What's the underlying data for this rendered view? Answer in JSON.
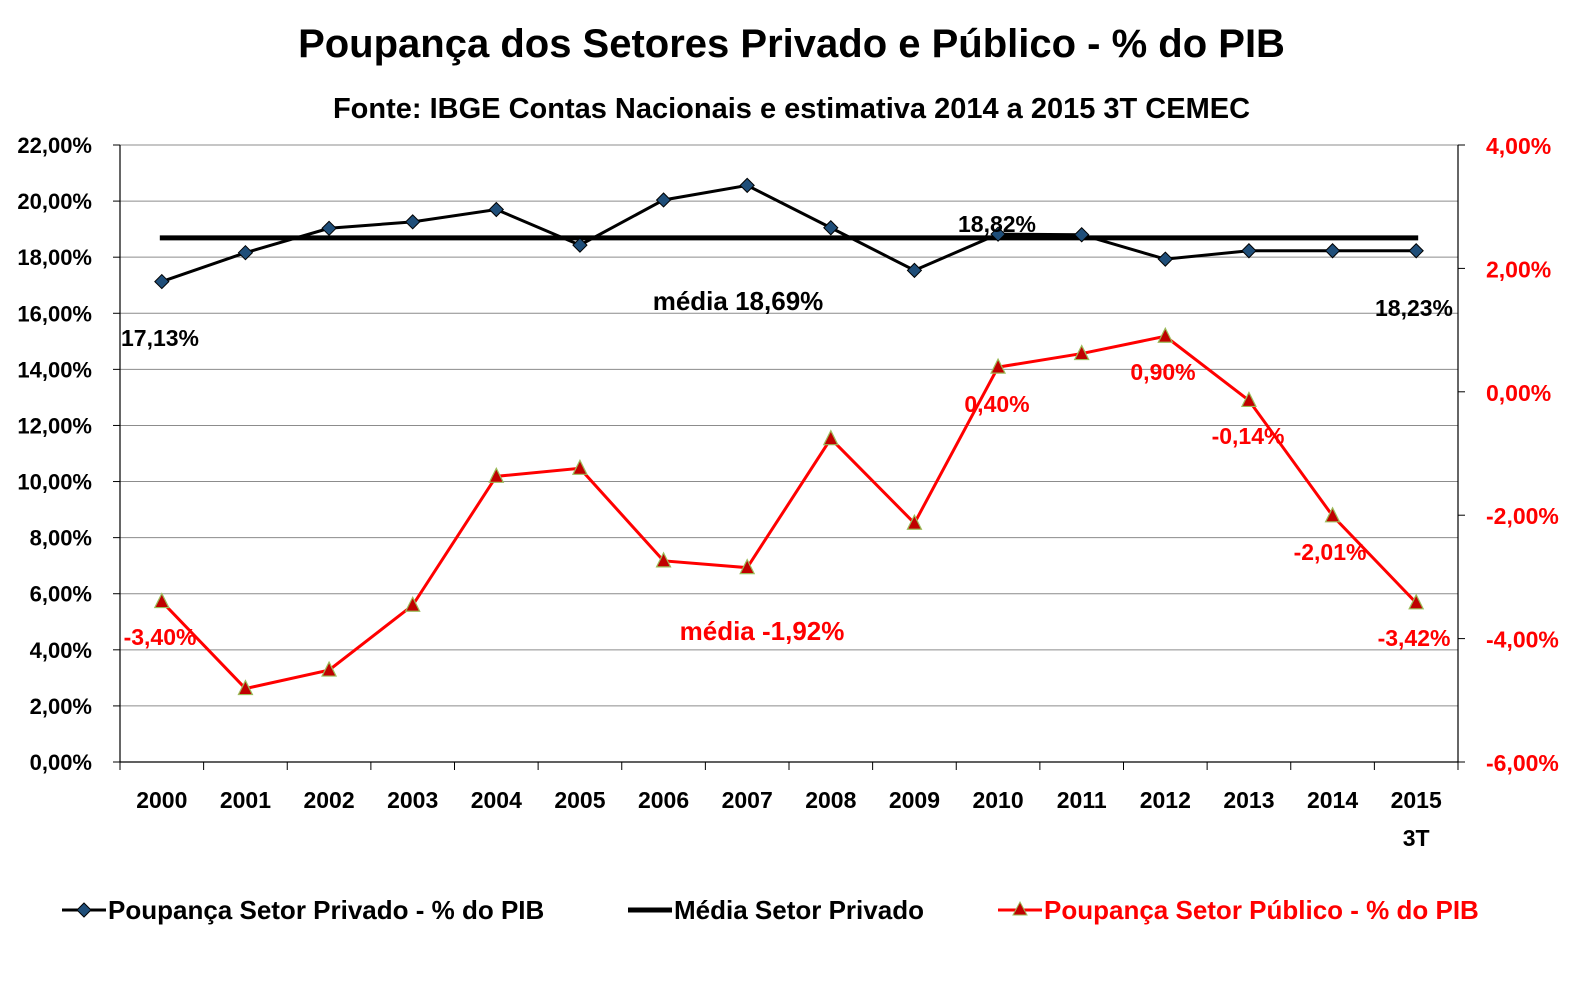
{
  "chart_data": {
    "type": "line",
    "title": "Poupança dos Setores Privado e Público - % do PIB",
    "subtitle": "Fonte: IBGE  Contas Nacionais e estimativa 2014 a 2015 3T CEMEC",
    "categories": [
      "2000",
      "2001",
      "2002",
      "2003",
      "2004",
      "2005",
      "2006",
      "2007",
      "2008",
      "2009",
      "2010",
      "2011",
      "2012",
      "2013",
      "2014",
      "2015\n3T"
    ],
    "y_left": {
      "range": [
        0,
        22
      ],
      "ticks": [
        "0,00%",
        "2,00%",
        "4,00%",
        "6,00%",
        "8,00%",
        "10,00%",
        "12,00%",
        "14,00%",
        "16,00%",
        "18,00%",
        "20,00%",
        "22,00%"
      ]
    },
    "y_right": {
      "range": [
        -6,
        4
      ],
      "ticks": [
        "-6,00%",
        "-4,00%",
        "-2,00%",
        "0,00%",
        "2,00%",
        "4,00%"
      ],
      "color": "#ff0000"
    },
    "grid": true,
    "legend_position": "bottom",
    "series": [
      {
        "name": "Poupança Setor Privado - % do PIB",
        "axis": "left",
        "color": "#000000",
        "marker": "diamond",
        "marker_color": "#1f4e79",
        "values": [
          17.13,
          18.16,
          19.03,
          19.26,
          19.7,
          18.43,
          20.04,
          20.56,
          19.05,
          17.53,
          18.82,
          18.8,
          17.93,
          18.23,
          18.23,
          18.23
        ]
      },
      {
        "name": "Média Setor Privado",
        "axis": "left",
        "color": "#000000",
        "constant": 18.69
      },
      {
        "name": "Poupança Setor Público - % do PIB",
        "axis": "right",
        "color": "#ff0000",
        "marker": "triangle",
        "marker_color": "#c00000",
        "values": [
          -3.4,
          -4.81,
          -4.51,
          -3.46,
          -1.37,
          -1.24,
          -2.74,
          -2.85,
          -0.76,
          -2.13,
          0.4,
          0.62,
          0.9,
          -0.14,
          -2.01,
          -3.42
        ]
      }
    ],
    "annotations": [
      {
        "text": "17,13%",
        "color": "#000000"
      },
      {
        "text": "18,82%",
        "color": "#000000"
      },
      {
        "text": "média 18,69%",
        "color": "#000000"
      },
      {
        "text": "18,23%",
        "color": "#000000"
      },
      {
        "text": "-3,40%",
        "color": "#ff0000"
      },
      {
        "text": "0,40%",
        "color": "#ff0000"
      },
      {
        "text": "0,90%",
        "color": "#ff0000"
      },
      {
        "text": "-0,14%",
        "color": "#ff0000"
      },
      {
        "text": "-2,01%",
        "color": "#ff0000"
      },
      {
        "text": "média -1,92%",
        "color": "#ff0000"
      },
      {
        "text": "-3,42%",
        "color": "#ff0000"
      }
    ]
  }
}
